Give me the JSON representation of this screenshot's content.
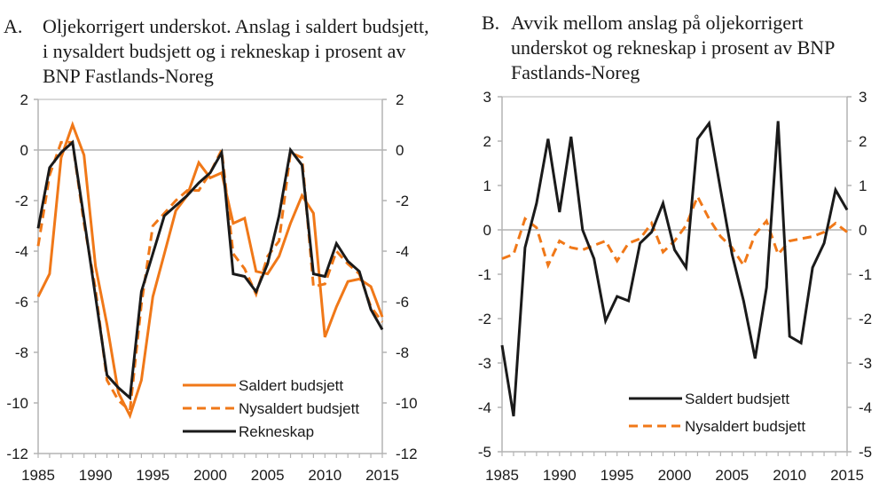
{
  "colors": {
    "orange": "#F07818",
    "black": "#1a1a1a",
    "axis": "#b3b3b3"
  },
  "chart_data": [
    {
      "id": "A",
      "type": "line",
      "panel_label": "A.",
      "title": "Oljekorrigert underskot. Anslag i saldert budsjett, i nysaldert budsjett og i rekneskap i prosent av BNP Fastlands-Noreg",
      "xlabel": "",
      "ylabel": "",
      "xlim": [
        1985,
        2015
      ],
      "ylim": [
        -12,
        2
      ],
      "yticks": [
        2,
        0,
        -2,
        -4,
        -6,
        -8,
        -10,
        -12
      ],
      "xtick_labels": [
        "1985",
        "1990",
        "1995",
        "2000",
        "2005",
        "2010",
        "2015"
      ],
      "grid": false,
      "zero_line": true,
      "dual_y_axis": true,
      "legend": {
        "position": "bottom-right",
        "entries": [
          "Saldert budsjett",
          "Nysaldert budsjett",
          "Rekneskap"
        ]
      },
      "x": [
        1985,
        1986,
        1987,
        1988,
        1989,
        1990,
        1991,
        1992,
        1993,
        1994,
        1995,
        1996,
        1997,
        1998,
        1999,
        2000,
        2001,
        2002,
        2003,
        2004,
        2005,
        2006,
        2007,
        2008,
        2009,
        2010,
        2011,
        2012,
        2013,
        2014,
        2015
      ],
      "series": [
        {
          "name": "Saldert budsjett",
          "style": "solid",
          "color": "orange",
          "values": [
            -5.8,
            -4.9,
            -0.3,
            1.0,
            -0.2,
            -4.6,
            -6.9,
            -9.6,
            -10.5,
            -9.1,
            -5.8,
            -4.1,
            -2.4,
            -1.8,
            -0.5,
            -1.1,
            -0.9,
            -2.9,
            -2.7,
            -4.8,
            -4.9,
            -4.2,
            -2.9,
            -1.8,
            -2.5,
            -7.4,
            -6.2,
            -5.2,
            -5.1,
            -5.4,
            -6.6
          ]
        },
        {
          "name": "Nysaldert budsjett",
          "style": "dashed",
          "color": "orange",
          "values": [
            -3.8,
            -1.0,
            0.3,
            0.3,
            -2.9,
            -5.5,
            -9.1,
            -9.9,
            -10.3,
            -6.1,
            -3.0,
            -2.5,
            -2.0,
            -1.6,
            -1.6,
            -0.9,
            0.0,
            -4.1,
            -4.7,
            -5.7,
            -4.2,
            -3.6,
            -0.1,
            -0.3,
            -5.4,
            -5.3,
            -4.0,
            -4.5,
            -4.9,
            -6.2,
            -6.8
          ]
        },
        {
          "name": "Rekneskap",
          "style": "solid",
          "color": "black",
          "values": [
            -3.1,
            -0.7,
            -0.1,
            0.3,
            -2.7,
            -5.8,
            -8.9,
            -9.4,
            -9.8,
            -5.6,
            -4.1,
            -2.6,
            -2.2,
            -1.8,
            -1.3,
            -0.9,
            -0.1,
            -4.9,
            -5.0,
            -5.6,
            -4.5,
            -2.6,
            0.0,
            -0.6,
            -4.9,
            -5.0,
            -3.7,
            -4.4,
            -4.8,
            -6.3,
            -7.1
          ]
        }
      ]
    },
    {
      "id": "B",
      "type": "line",
      "panel_label": "B.",
      "title": "Avvik mellom anslag på oljekorrigert underskot og rekneskap i prosent av BNP Fastlands-Noreg",
      "xlabel": "",
      "ylabel": "",
      "xlim": [
        1985,
        2015
      ],
      "ylim": [
        -5,
        3
      ],
      "yticks": [
        3,
        2,
        1,
        0,
        -1,
        -2,
        -3,
        -4,
        -5
      ],
      "xtick_labels": [
        "1985",
        "1990",
        "1995",
        "2000",
        "2005",
        "2010",
        "2015"
      ],
      "grid": false,
      "zero_line": true,
      "dual_y_axis": true,
      "legend": {
        "position": "bottom-right",
        "entries": [
          "Saldert budsjett",
          "Nysaldert budsjett"
        ]
      },
      "x": [
        1985,
        1986,
        1987,
        1988,
        1989,
        1990,
        1991,
        1992,
        1993,
        1994,
        1995,
        1996,
        1997,
        1998,
        1999,
        2000,
        2001,
        2002,
        2003,
        2004,
        2005,
        2006,
        2007,
        2008,
        2009,
        2010,
        2011,
        2012,
        2013,
        2014,
        2015
      ],
      "series": [
        {
          "name": "Saldert budsjett",
          "style": "solid",
          "color": "black",
          "values": [
            -2.6,
            -4.2,
            -0.4,
            0.6,
            2.05,
            0.4,
            2.1,
            0.0,
            -0.65,
            -2.05,
            -1.5,
            -1.6,
            -0.3,
            -0.05,
            0.6,
            -0.45,
            -0.85,
            2.05,
            2.4,
            0.9,
            -0.55,
            -1.6,
            -2.9,
            -1.3,
            2.45,
            -2.4,
            -2.55,
            -0.85,
            -0.3,
            0.9,
            0.45
          ]
        },
        {
          "name": "Nysaldert budsjett",
          "style": "dashed",
          "color": "orange",
          "values": [
            -0.65,
            -0.55,
            0.25,
            0.05,
            -0.8,
            -0.25,
            -0.4,
            -0.45,
            -0.35,
            -0.25,
            -0.7,
            -0.3,
            -0.2,
            0.15,
            -0.5,
            -0.25,
            0.1,
            0.75,
            0.25,
            -0.15,
            -0.4,
            -0.8,
            -0.1,
            0.2,
            -0.55,
            -0.25,
            -0.2,
            -0.15,
            -0.05,
            0.15,
            -0.05
          ]
        }
      ]
    }
  ]
}
